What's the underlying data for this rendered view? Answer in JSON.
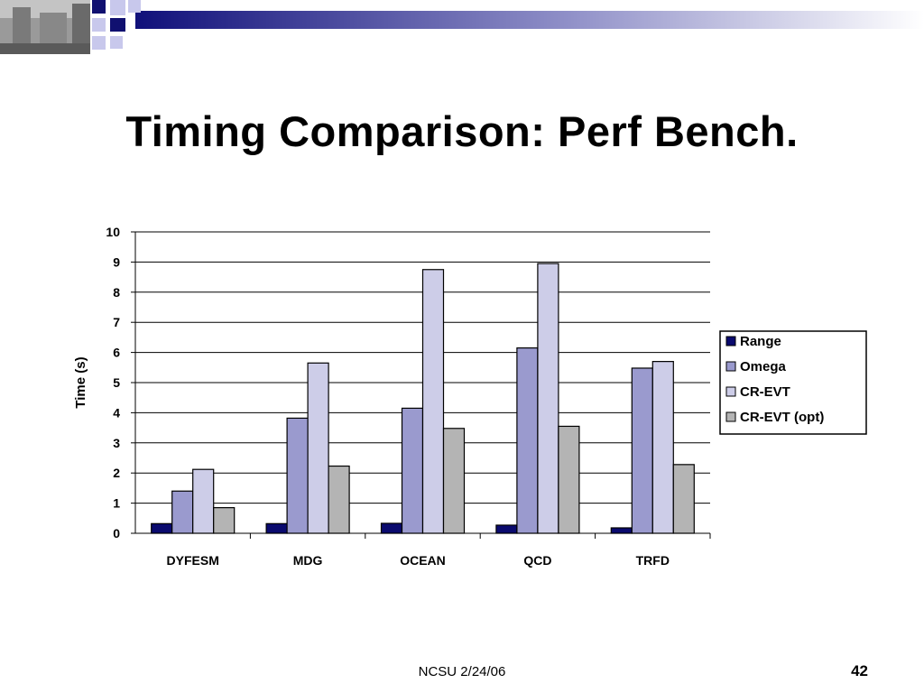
{
  "slide": {
    "title": "Timing Comparison: Perf Bench.",
    "footer": "NCSU 2/24/06",
    "page_number": "42"
  },
  "colors": {
    "banner_dark": "#10107a",
    "banner_light": "#ffffff",
    "square_light": "#c8c8ec",
    "square_dark": "#101070"
  },
  "chart_data": {
    "type": "bar",
    "title": "",
    "xlabel": "",
    "ylabel": "Time (s)",
    "ylim": [
      0,
      10
    ],
    "yticks": [
      "0",
      "1",
      "2",
      "3",
      "4",
      "5",
      "6",
      "7",
      "8",
      "9",
      "10"
    ],
    "grid": true,
    "legend_position": "right",
    "categories": [
      "DYFESM",
      "MDG",
      "OCEAN",
      "QCD",
      "TRFD"
    ],
    "series": [
      {
        "name": "Range",
        "color": "#0a0a6e",
        "values": [
          0.32,
          0.32,
          0.33,
          0.27,
          0.18
        ]
      },
      {
        "name": "Omega",
        "color": "#9a9ace",
        "values": [
          1.4,
          3.82,
          4.15,
          6.15,
          5.48
        ]
      },
      {
        "name": "CR-EVT",
        "color": "#cdcde8",
        "values": [
          2.12,
          5.65,
          8.75,
          8.95,
          5.7
        ]
      },
      {
        "name": "CR-EVT (opt)",
        "color": "#b4b4b4",
        "values": [
          0.85,
          2.23,
          3.48,
          3.55,
          2.28
        ]
      }
    ]
  }
}
